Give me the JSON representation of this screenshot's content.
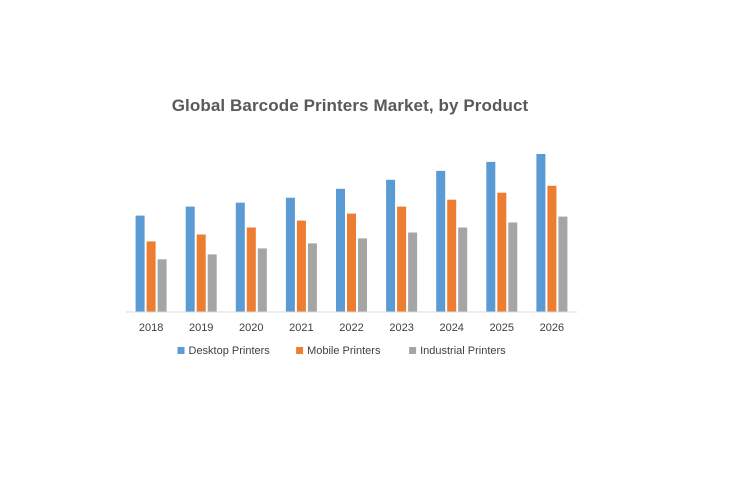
{
  "chart_data": {
    "type": "bar",
    "title": "Global Barcode Printers Market, by Product",
    "xlabel": "",
    "ylabel": "",
    "categories": [
      "2018",
      "2019",
      "2020",
      "2021",
      "2022",
      "2023",
      "2024",
      "2025",
      "2026"
    ],
    "series": [
      {
        "name": "Desktop Printers",
        "color": "#5B9BD5",
        "values": [
          97,
          106,
          110,
          115,
          124,
          133,
          142,
          151,
          159
        ]
      },
      {
        "name": "Mobile Printers",
        "color": "#ED7D31",
        "values": [
          71,
          78,
          85,
          92,
          99,
          106,
          113,
          120,
          127
        ]
      },
      {
        "name": "Industrial Printers",
        "color": "#A5A5A5",
        "values": [
          53,
          58,
          64,
          69,
          74,
          80,
          85,
          90,
          96
        ]
      }
    ],
    "ylim": [
      0,
      165
    ],
    "grid": false,
    "legend": "bottom"
  }
}
